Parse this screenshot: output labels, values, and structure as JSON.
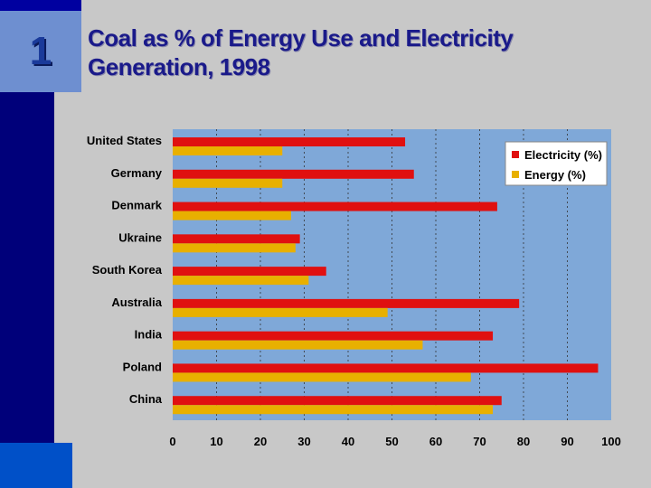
{
  "slide": {
    "number": "1",
    "title": "Coal as % of Energy Use and Electricity Generation, 1998"
  },
  "colors": {
    "electricity": "#e01010",
    "energy": "#e8b000",
    "plot_bg": "#7fa8d8"
  },
  "chart_data": {
    "type": "bar",
    "orientation": "horizontal",
    "title": "Coal as % of Energy Use and Electricity Generation, 1998",
    "categories": [
      "United States",
      "Germany",
      "Denmark",
      "Ukraine",
      "South Korea",
      "Australia",
      "India",
      "Poland",
      "China"
    ],
    "series": [
      {
        "name": "Electricity (%)",
        "values": [
          53,
          55,
          74,
          29,
          35,
          79,
          73,
          97,
          75
        ]
      },
      {
        "name": "Energy (%)",
        "values": [
          25,
          25,
          27,
          28,
          31,
          49,
          57,
          68,
          73
        ]
      }
    ],
    "xlim": [
      0,
      100
    ],
    "xticks": [
      "0",
      "10",
      "20",
      "30",
      "40",
      "50",
      "60",
      "70",
      "80",
      "90",
      "100"
    ],
    "grid": true,
    "legend_position": "top-right"
  }
}
